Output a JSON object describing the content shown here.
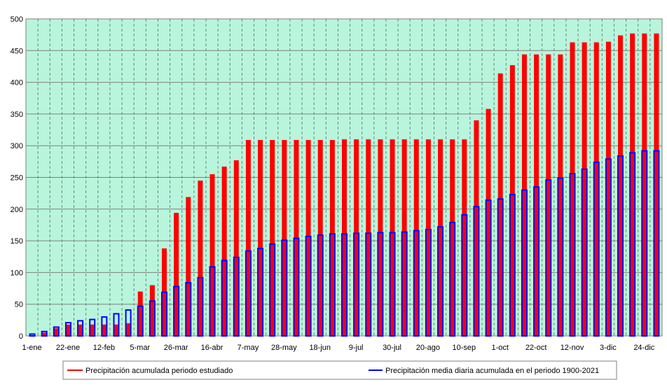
{
  "chart_data": {
    "type": "bar",
    "title": "",
    "xlabel": "",
    "ylabel": "",
    "ylim": [
      0,
      500
    ],
    "yticks": [
      0,
      50,
      100,
      150,
      200,
      250,
      300,
      350,
      400,
      450,
      500
    ],
    "grid": true,
    "background": "#b8f5dc",
    "legend_position": "bottom",
    "x_tick_labels": [
      "1-ene",
      "22-ene",
      "12-feb",
      "5-mar",
      "26-mar",
      "16-abr",
      "7-may",
      "28-may",
      "18-jun",
      "9-jul",
      "30-jul",
      "20-ago",
      "10-sep",
      "1-oct",
      "22-oct",
      "12-nov",
      "3-dic",
      "24-dic"
    ],
    "categories": [
      "1-ene",
      "8-ene",
      "15-ene",
      "22-ene",
      "29-ene",
      "5-feb",
      "12-feb",
      "19-feb",
      "26-feb",
      "5-mar",
      "12-mar",
      "19-mar",
      "26-mar",
      "2-abr",
      "9-abr",
      "16-abr",
      "23-abr",
      "30-abr",
      "7-may",
      "14-may",
      "21-may",
      "28-may",
      "4-jun",
      "11-jun",
      "18-jun",
      "25-jun",
      "2-jul",
      "9-jul",
      "16-jul",
      "23-jul",
      "30-jul",
      "6-ago",
      "13-ago",
      "20-ago",
      "27-ago",
      "3-sep",
      "10-sep",
      "17-sep",
      "24-sep",
      "1-oct",
      "8-oct",
      "15-oct",
      "22-oct",
      "29-oct",
      "5-nov",
      "12-nov",
      "19-nov",
      "26-nov",
      "3-dic",
      "10-dic",
      "17-dic",
      "24-dic",
      "31-dic"
    ],
    "series": [
      {
        "name": "Precipitación acumulada periodo estudiado",
        "color": "#ff0000",
        "style": "filled",
        "values": [
          0,
          5,
          12,
          18,
          18,
          18,
          18,
          18,
          20,
          70,
          80,
          138,
          194,
          219,
          245,
          255,
          267,
          277,
          309,
          309,
          309,
          309,
          309,
          309,
          309,
          309,
          310,
          310,
          310,
          310,
          310,
          310,
          310,
          310,
          310,
          310,
          310,
          340,
          358,
          414,
          427,
          444,
          444,
          444,
          444,
          463,
          463,
          463,
          464,
          474,
          477,
          477,
          477
        ]
      },
      {
        "name": "Precipitación media diaria acumulada en el periodo 1900-2021",
        "color": "#0000ff",
        "style": "outline",
        "values": [
          4,
          8,
          15,
          22,
          25,
          27,
          31,
          36,
          42,
          48,
          56,
          70,
          79,
          85,
          93,
          110,
          120,
          125,
          135,
          139,
          146,
          152,
          155,
          158,
          160,
          162,
          162,
          163,
          163,
          164,
          164,
          165,
          167,
          169,
          173,
          180,
          192,
          205,
          215,
          217,
          224,
          231,
          236,
          247,
          250,
          257,
          264,
          275,
          280,
          285,
          290,
          293,
          293
        ]
      }
    ]
  }
}
